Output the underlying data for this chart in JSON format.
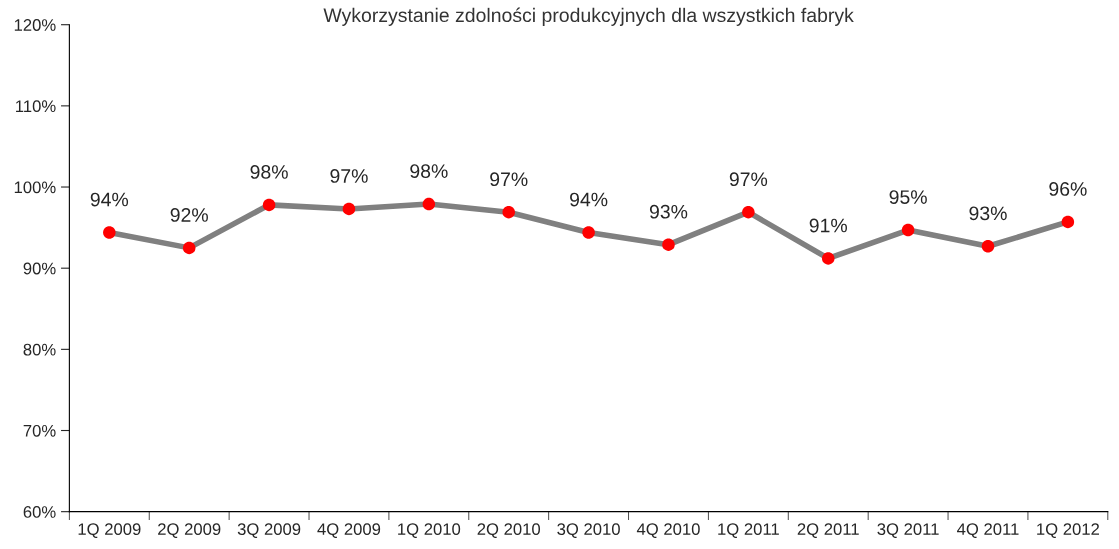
{
  "chart_data": {
    "type": "line",
    "title": "Wykorzystanie zdolności produkcyjnych dla wszystkich fabryk",
    "categories": [
      "1Q 2009",
      "2Q 2009",
      "3Q 2009",
      "4Q 2009",
      "1Q 2010",
      "2Q 2010",
      "3Q 2010",
      "4Q 2010",
      "1Q 2011",
      "2Q 2011",
      "3Q 2011",
      "4Q 2011",
      "1Q 2012"
    ],
    "series": [
      {
        "color": "#808080",
        "colors": [
          "#ff0000",
          "#ff0000",
          "#ff0000",
          "#ff0000",
          "#ff0000",
          "#ff0000",
          "#ff0000",
          "#ff0000",
          "#ff0000",
          "#ff0000",
          "#ff0000",
          "#ff0000",
          "#ff0000"
        ],
        "values": [
          94.4,
          92.5,
          97.8,
          97.3,
          97.9,
          96.9,
          94.4,
          92.9,
          96.9,
          91.2,
          94.7,
          92.7,
          95.7
        ],
        "value_labels": [
          "94%",
          "92%",
          "98%",
          "97%",
          "98%",
          "97%",
          "94%",
          "93%",
          "97%",
          "91%",
          "95%",
          "93%",
          "96%"
        ]
      }
    ],
    "ylim": [
      60,
      120
    ],
    "yticks": [
      {
        "value": 60,
        "label": "60%"
      },
      {
        "value": 70,
        "label": "70%"
      },
      {
        "value": 80,
        "label": "80%"
      },
      {
        "value": 90,
        "label": "90%"
      },
      {
        "value": 100,
        "label": "100%"
      },
      {
        "value": 110,
        "label": "110%"
      },
      {
        "value": 120,
        "label": "120%"
      }
    ],
    "marker": "circle",
    "line_style": "solid",
    "grid": false,
    "legend": false
  }
}
